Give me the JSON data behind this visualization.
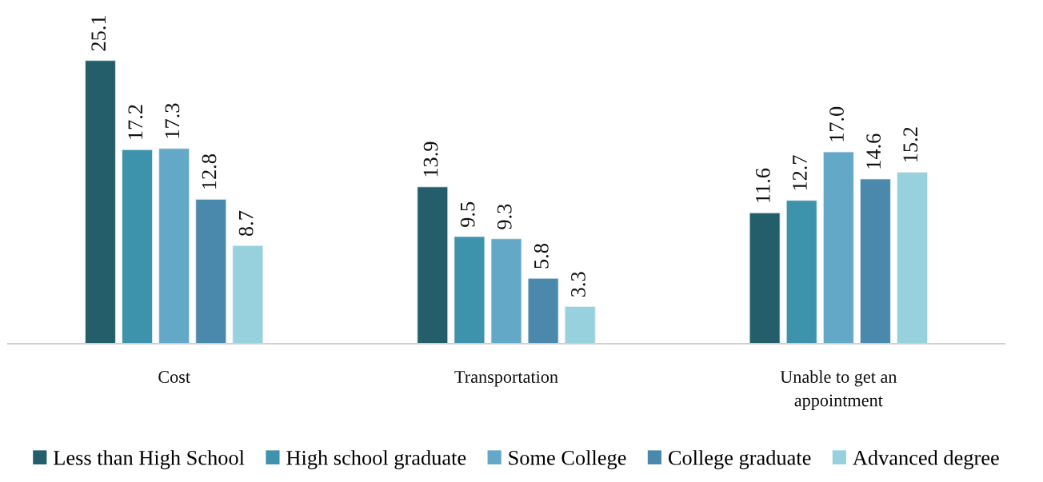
{
  "chart_data": {
    "type": "bar",
    "categories": [
      "Cost",
      "Transportation",
      "Unable to get an\nappointment"
    ],
    "series": [
      {
        "name": "Less than High School",
        "color": "#245e6a",
        "values": [
          25.1,
          13.9,
          11.6
        ],
        "value_labels": [
          "25.1",
          "13.9",
          "11.6"
        ]
      },
      {
        "name": "High school graduate",
        "color": "#3d93ab",
        "values": [
          17.2,
          9.5,
          12.7
        ],
        "value_labels": [
          "17.2",
          "9.5",
          "12.7"
        ]
      },
      {
        "name": "Some College",
        "color": "#64a8c8",
        "values": [
          17.3,
          9.3,
          17.0
        ],
        "value_labels": [
          "17.3",
          "9.3",
          "17.0"
        ]
      },
      {
        "name": "College graduate",
        "color": "#4a89ab",
        "values": [
          12.8,
          5.8,
          14.6
        ],
        "value_labels": [
          "12.8",
          "5.8",
          "14.6"
        ]
      },
      {
        "name": "Advanced degree",
        "color": "#98d1de",
        "values": [
          8.7,
          3.3,
          15.2
        ],
        "value_labels": [
          "8.7",
          "3.3",
          "15.2"
        ]
      }
    ],
    "tick_labels": "x",
    "legend": "bottom",
    "grid": false
  }
}
